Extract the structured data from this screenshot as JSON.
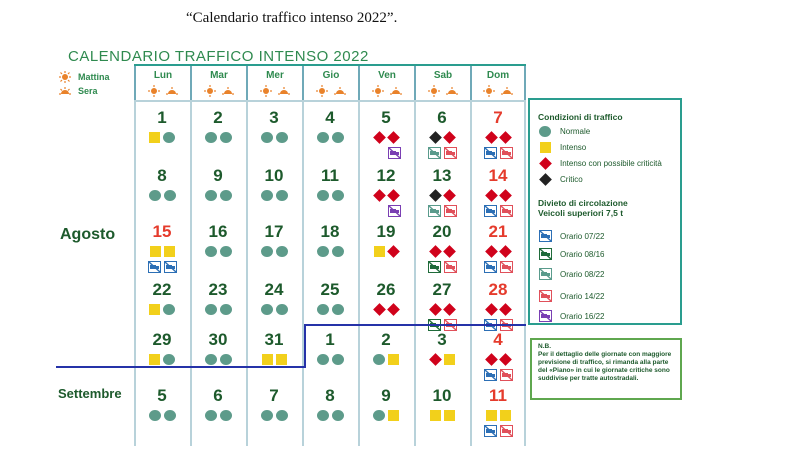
{
  "caption": "“Calendario traffico intenso 2022”.",
  "calendar_title": "CALENDARIO  TRAFFICO INTENSO 2022",
  "mini_legend": {
    "mattina": "Mattina",
    "sera": "Sera"
  },
  "weekdays": [
    "Lun",
    "Mar",
    "Mer",
    "Gio",
    "Ven",
    "Sab",
    "Dom"
  ],
  "months": {
    "agosto": "Agosto",
    "settembre": "Settembre"
  },
  "weeks": [
    [
      {
        "day": "1",
        "red": false,
        "icons": [
          "intenso",
          "normale"
        ]
      },
      {
        "day": "2",
        "red": false,
        "icons": [
          "normale",
          "normale"
        ]
      },
      {
        "day": "3",
        "red": false,
        "icons": [
          "normale",
          "normale"
        ]
      },
      {
        "day": "4",
        "red": false,
        "icons": [
          "normale",
          "normale"
        ]
      },
      {
        "day": "5",
        "red": false,
        "icons": [
          "rosso",
          "rosso"
        ],
        "trucks": [
          "",
          "t1622"
        ]
      },
      {
        "day": "6",
        "red": false,
        "icons": [
          "nero",
          "rosso"
        ],
        "trucks": [
          "t0822",
          "t1422"
        ]
      },
      {
        "day": "7",
        "red": true,
        "icons": [
          "rosso",
          "rosso"
        ],
        "trucks": [
          "t0722",
          "t1422"
        ]
      }
    ],
    [
      {
        "day": "8",
        "red": false,
        "icons": [
          "normale",
          "normale"
        ]
      },
      {
        "day": "9",
        "red": false,
        "icons": [
          "normale",
          "normale"
        ]
      },
      {
        "day": "10",
        "red": false,
        "icons": [
          "normale",
          "normale"
        ]
      },
      {
        "day": "11",
        "red": false,
        "icons": [
          "normale",
          "normale"
        ]
      },
      {
        "day": "12",
        "red": false,
        "icons": [
          "rosso",
          "rosso"
        ],
        "trucks": [
          "",
          "t1622"
        ]
      },
      {
        "day": "13",
        "red": false,
        "icons": [
          "nero",
          "rosso"
        ],
        "trucks": [
          "t0822",
          "t1422"
        ]
      },
      {
        "day": "14",
        "red": true,
        "icons": [
          "rosso",
          "rosso"
        ],
        "trucks": [
          "t0722",
          "t1422"
        ]
      }
    ],
    [
      {
        "day": "15",
        "red": true,
        "icons": [
          "intenso",
          "intenso"
        ],
        "trucks": [
          "t0722",
          "t0722"
        ]
      },
      {
        "day": "16",
        "red": false,
        "icons": [
          "normale",
          "normale"
        ]
      },
      {
        "day": "17",
        "red": false,
        "icons": [
          "normale",
          "normale"
        ]
      },
      {
        "day": "18",
        "red": false,
        "icons": [
          "normale",
          "normale"
        ]
      },
      {
        "day": "19",
        "red": false,
        "icons": [
          "intenso",
          "rosso"
        ]
      },
      {
        "day": "20",
        "red": false,
        "icons": [
          "rosso",
          "rosso"
        ],
        "trucks": [
          "t0816",
          "t1422"
        ]
      },
      {
        "day": "21",
        "red": true,
        "icons": [
          "rosso",
          "rosso"
        ],
        "trucks": [
          "t0722",
          "t1422"
        ]
      }
    ],
    [
      {
        "day": "22",
        "red": false,
        "icons": [
          "intenso",
          "normale"
        ]
      },
      {
        "day": "23",
        "red": false,
        "icons": [
          "normale",
          "normale"
        ]
      },
      {
        "day": "24",
        "red": false,
        "icons": [
          "normale",
          "normale"
        ]
      },
      {
        "day": "25",
        "red": false,
        "icons": [
          "normale",
          "normale"
        ]
      },
      {
        "day": "26",
        "red": false,
        "icons": [
          "rosso",
          "rosso"
        ]
      },
      {
        "day": "27",
        "red": false,
        "icons": [
          "rosso",
          "rosso"
        ],
        "trucks": [
          "t0816",
          "t1422"
        ]
      },
      {
        "day": "28",
        "red": true,
        "icons": [
          "rosso",
          "rosso"
        ],
        "trucks": [
          "t0722",
          "t1422"
        ]
      }
    ],
    [
      {
        "day": "29",
        "red": false,
        "icons": [
          "intenso",
          "normale"
        ]
      },
      {
        "day": "30",
        "red": false,
        "icons": [
          "normale",
          "normale"
        ]
      },
      {
        "day": "31",
        "red": false,
        "icons": [
          "intenso",
          "intenso"
        ]
      },
      {
        "day": "1",
        "red": false,
        "icons": [
          "normale",
          "normale"
        ]
      },
      {
        "day": "2",
        "red": false,
        "icons": [
          "normale",
          "intenso"
        ]
      },
      {
        "day": "3",
        "red": false,
        "icons": [
          "rosso",
          "intenso"
        ]
      },
      {
        "day": "4",
        "red": true,
        "icons": [
          "rosso",
          "rosso"
        ],
        "trucks": [
          "t0722",
          "t1422"
        ]
      }
    ],
    [
      {
        "day": "5",
        "red": false,
        "icons": [
          "normale",
          "normale"
        ]
      },
      {
        "day": "6",
        "red": false,
        "icons": [
          "normale",
          "normale"
        ]
      },
      {
        "day": "7",
        "red": false,
        "icons": [
          "normale",
          "normale"
        ]
      },
      {
        "day": "8",
        "red": false,
        "icons": [
          "normale",
          "normale"
        ]
      },
      {
        "day": "9",
        "red": false,
        "icons": [
          "normale",
          "intenso"
        ]
      },
      {
        "day": "10",
        "red": false,
        "icons": [
          "intenso",
          "intenso"
        ]
      },
      {
        "day": "11",
        "red": true,
        "icons": [
          "intenso",
          "intenso"
        ],
        "trucks": [
          "t0722",
          "t1422"
        ]
      }
    ]
  ],
  "legend": {
    "traffic_title": "Condizioni di traffico",
    "normale": "Normale",
    "intenso": "Intenso",
    "rosso": "Intenso con possibile criticità",
    "nero": "Critico",
    "divieto_title_1": "Divieto di circolazione",
    "divieto_title_2": "Veicoli superiori 7,5 t",
    "orario_0722": "Orario 07/22",
    "orario_0816": "Orario 08/16",
    "orario_0822": "Orario 08/22",
    "orario_1422": "Orario 14/22",
    "orario_1622": "Orario 16/22"
  },
  "nb": {
    "title": "N.B.",
    "text": "Per il dettaglio delle giornate con maggiore previsione di traffico, si rimanda alla parte del «Piano» in cui le giornate critiche sono suddivise per tratte autostradali."
  },
  "colors": {
    "normale": "#5d9b8a",
    "intenso": "#f2d01b",
    "rosso": "#d0021b",
    "nero": "#222222",
    "t0722": "#2c6fb5",
    "t0816": "#1f6b3a",
    "t0822": "#5a9b8c",
    "t1422": "#e0505a",
    "t1622": "#7a3fb3"
  }
}
